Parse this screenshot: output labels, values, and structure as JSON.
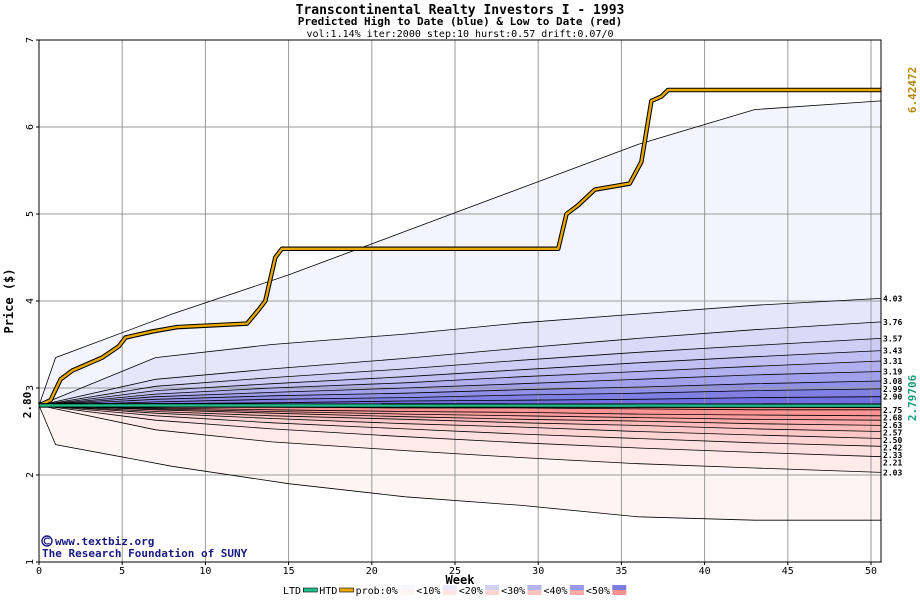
{
  "chart_data": {
    "type": "area",
    "title": "Transcontinental Realty Investors I - 1993",
    "subtitle": "Predicted High to Date (blue) &  Low to Date (red)",
    "params": "vol:1.14% iter:2000 step:10 hurst:0.57 drift:0.07/0",
    "xlabel": "Week",
    "ylabel": "Price ($)",
    "xlim": [
      0,
      50.6
    ],
    "ylim": [
      1,
      7
    ],
    "x_ticks": [
      0,
      5,
      10,
      15,
      20,
      25,
      30,
      35,
      40,
      45,
      50
    ],
    "y_ticks": [
      1,
      2,
      3,
      4,
      5,
      6,
      7
    ],
    "grid": true,
    "start_price": 2.8,
    "start_price_label": "2.80",
    "htd_final_value": 6.42472,
    "htd_final_label": "6.42472",
    "ltd_final_value": 2.79706,
    "ltd_final_label": "2.79706",
    "htd_path": [
      [
        0,
        2.8
      ],
      [
        0.7,
        2.86
      ],
      [
        1.3,
        3.1
      ],
      [
        2.0,
        3.2
      ],
      [
        3.8,
        3.35
      ],
      [
        4.8,
        3.48
      ],
      [
        5.2,
        3.58
      ],
      [
        6.8,
        3.65
      ],
      [
        8.3,
        3.7
      ],
      [
        12.5,
        3.74
      ],
      [
        13.2,
        3.9
      ],
      [
        13.6,
        4.0
      ],
      [
        14.2,
        4.5
      ],
      [
        14.6,
        4.6
      ],
      [
        31.2,
        4.6
      ],
      [
        31.7,
        5.0
      ],
      [
        32.4,
        5.1
      ],
      [
        33.4,
        5.28
      ],
      [
        35.5,
        5.35
      ],
      [
        36.2,
        5.6
      ],
      [
        36.8,
        6.3
      ],
      [
        37.4,
        6.35
      ],
      [
        37.8,
        6.42472
      ],
      [
        50.6,
        6.42472
      ]
    ],
    "ltd_path": [
      [
        0,
        2.8
      ],
      [
        50.6,
        2.797
      ]
    ],
    "upper_bands": [
      {
        "label": "4.03",
        "values": [
          2.8,
          3.35,
          3.5,
          3.62,
          3.75,
          3.85,
          3.95,
          4.03
        ]
      },
      {
        "label": "3.76",
        "values": [
          2.8,
          3.1,
          3.22,
          3.34,
          3.46,
          3.57,
          3.67,
          3.76
        ]
      },
      {
        "label": "3.57",
        "values": [
          2.8,
          3.02,
          3.12,
          3.22,
          3.32,
          3.41,
          3.49,
          3.57
        ]
      },
      {
        "label": "3.43",
        "values": [
          2.8,
          2.97,
          3.05,
          3.13,
          3.21,
          3.29,
          3.36,
          3.43
        ]
      },
      {
        "label": "3.31",
        "values": [
          2.8,
          2.93,
          3.0,
          3.06,
          3.13,
          3.19,
          3.25,
          3.31
        ]
      },
      {
        "label": "3.19",
        "values": [
          2.8,
          2.9,
          2.95,
          3.0,
          3.05,
          3.1,
          3.15,
          3.19
        ]
      },
      {
        "label": "3.08",
        "values": [
          2.8,
          2.87,
          2.91,
          2.94,
          2.98,
          3.01,
          3.05,
          3.08
        ]
      },
      {
        "label": "2.99",
        "values": [
          2.8,
          2.84,
          2.87,
          2.89,
          2.92,
          2.94,
          2.97,
          2.99
        ]
      },
      {
        "label": "2.90",
        "values": [
          2.8,
          2.82,
          2.83,
          2.85,
          2.86,
          2.87,
          2.89,
          2.9
        ]
      }
    ],
    "upper_envelope": [
      2.8,
      3.35,
      3.85,
      4.3,
      4.8,
      5.3,
      5.8,
      6.2,
      6.3
    ],
    "lower_bands": [
      {
        "label": "2.75",
        "values": [
          2.8,
          2.79,
          2.78,
          2.77,
          2.77,
          2.76,
          2.75,
          2.75
        ]
      },
      {
        "label": "2.68",
        "values": [
          2.8,
          2.77,
          2.75,
          2.73,
          2.72,
          2.7,
          2.69,
          2.68
        ]
      },
      {
        "label": "2.63",
        "values": [
          2.8,
          2.76,
          2.73,
          2.7,
          2.68,
          2.66,
          2.64,
          2.63
        ]
      },
      {
        "label": "2.57",
        "values": [
          2.8,
          2.75,
          2.71,
          2.67,
          2.64,
          2.62,
          2.59,
          2.57
        ]
      },
      {
        "label": "2.50",
        "values": [
          2.8,
          2.73,
          2.68,
          2.64,
          2.6,
          2.57,
          2.53,
          2.5
        ]
      },
      {
        "label": "2.42",
        "values": [
          2.8,
          2.71,
          2.65,
          2.59,
          2.55,
          2.5,
          2.46,
          2.42
        ]
      },
      {
        "label": "2.33",
        "values": [
          2.8,
          2.68,
          2.6,
          2.53,
          2.47,
          2.42,
          2.37,
          2.33
        ]
      },
      {
        "label": "2.21",
        "values": [
          2.8,
          2.63,
          2.53,
          2.44,
          2.37,
          2.31,
          2.26,
          2.21
        ]
      },
      {
        "label": "2.03",
        "values": [
          2.8,
          2.52,
          2.38,
          2.28,
          2.2,
          2.13,
          2.08,
          2.03
        ]
      }
    ],
    "lower_envelope": [
      2.8,
      2.35,
      2.1,
      1.9,
      1.75,
      1.65,
      1.52,
      1.48,
      1.48
    ],
    "band_x": [
      0,
      1,
      8,
      15,
      22,
      29,
      36,
      43,
      50.6
    ],
    "band_x_inner": [
      0,
      7,
      14,
      22,
      29,
      36,
      43,
      50.6
    ],
    "legend": [
      "LTD",
      "HTD",
      "prob:0%",
      "<10%",
      "<20%",
      "<30%",
      "<40%",
      "<50%"
    ],
    "legend_colors": [
      "#1fbf8c",
      "#e8a800",
      "#f6f6ff",
      "#e8e8fc",
      "#d0d0f4",
      "#b4b4ee",
      "#9898e8",
      "#7c7ce2"
    ],
    "legend_colors_red": [
      "#fff4f4",
      "#ffe6e6",
      "#ffd4d4",
      "#ffc0c0",
      "#ffa8a8",
      "#ff9090"
    ],
    "credit_url": "www.textbiz.org",
    "credit_org": "The Research Foundation of SUNY",
    "colors": {
      "htd": "#e8a800",
      "ltd": "#1fbf8c",
      "htd_label": "#b8860b",
      "ltd_label": "#1a9a7a"
    }
  }
}
